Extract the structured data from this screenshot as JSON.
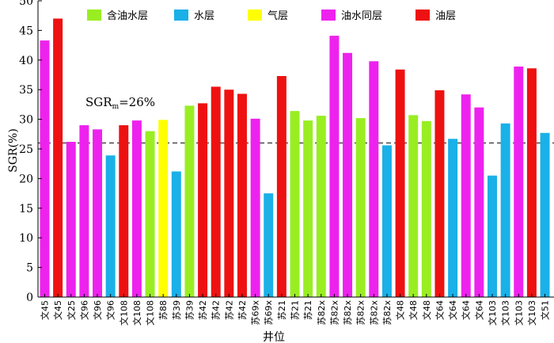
{
  "chart_data": {
    "type": "bar",
    "xlabel": "井位",
    "ylabel": "SGR(%)",
    "ylim": [
      0,
      50
    ],
    "yticks": [
      0,
      5,
      10,
      15,
      20,
      25,
      30,
      35,
      40,
      45,
      50
    ],
    "threshold": {
      "value": 26,
      "label_main": "SGR",
      "label_sub": "m",
      "label_rest": "=26%"
    },
    "legend": [
      {
        "name": "含油水层",
        "color": "#99ee22"
      },
      {
        "name": "水层",
        "color": "#1ab0e8"
      },
      {
        "name": "气层",
        "color": "#ffff00"
      },
      {
        "name": "油水同层",
        "color": "#ee22ee"
      },
      {
        "name": "油层",
        "color": "#ee1111"
      }
    ],
    "bars": [
      {
        "category": "文45",
        "value": 43.3,
        "type": 3
      },
      {
        "category": "文45",
        "value": 47.0,
        "type": 4
      },
      {
        "category": "文25",
        "value": 26.2,
        "type": 3
      },
      {
        "category": "文96",
        "value": 29.0,
        "type": 3
      },
      {
        "category": "文96",
        "value": 28.3,
        "type": 3
      },
      {
        "category": "文96",
        "value": 23.9,
        "type": 1
      },
      {
        "category": "文108",
        "value": 29.0,
        "type": 4
      },
      {
        "category": "文108",
        "value": 29.8,
        "type": 3
      },
      {
        "category": "文108",
        "value": 28.0,
        "type": 0
      },
      {
        "category": "苏88",
        "value": 29.9,
        "type": 2
      },
      {
        "category": "苏39",
        "value": 21.2,
        "type": 1
      },
      {
        "category": "苏39",
        "value": 32.3,
        "type": 0
      },
      {
        "category": "苏42",
        "value": 32.7,
        "type": 4
      },
      {
        "category": "苏42",
        "value": 35.5,
        "type": 4
      },
      {
        "category": "苏42",
        "value": 35.0,
        "type": 4
      },
      {
        "category": "苏42",
        "value": 34.3,
        "type": 4
      },
      {
        "category": "苏69x",
        "value": 30.1,
        "type": 3
      },
      {
        "category": "苏69x",
        "value": 17.5,
        "type": 1
      },
      {
        "category": "苏21",
        "value": 37.3,
        "type": 4
      },
      {
        "category": "苏21",
        "value": 31.4,
        "type": 0
      },
      {
        "category": "苏21",
        "value": 29.8,
        "type": 0
      },
      {
        "category": "苏82x",
        "value": 30.6,
        "type": 0
      },
      {
        "category": "苏82x",
        "value": 44.1,
        "type": 3
      },
      {
        "category": "苏82x",
        "value": 41.2,
        "type": 3
      },
      {
        "category": "苏82x",
        "value": 30.2,
        "type": 0
      },
      {
        "category": "苏82x",
        "value": 39.8,
        "type": 3
      },
      {
        "category": "苏82x",
        "value": 25.6,
        "type": 1
      },
      {
        "category": "文48",
        "value": 38.4,
        "type": 4
      },
      {
        "category": "文48",
        "value": 30.7,
        "type": 0
      },
      {
        "category": "文48",
        "value": 29.7,
        "type": 0
      },
      {
        "category": "文64",
        "value": 34.9,
        "type": 4
      },
      {
        "category": "文64",
        "value": 26.7,
        "type": 1
      },
      {
        "category": "文64",
        "value": 34.2,
        "type": 3
      },
      {
        "category": "文64",
        "value": 32.0,
        "type": 3
      },
      {
        "category": "文103",
        "value": 20.5,
        "type": 1
      },
      {
        "category": "文103",
        "value": 29.3,
        "type": 1
      },
      {
        "category": "文103",
        "value": 38.9,
        "type": 3
      },
      {
        "category": "文103",
        "value": 38.6,
        "type": 4
      },
      {
        "category": "文51",
        "value": 27.7,
        "type": 1
      }
    ]
  }
}
